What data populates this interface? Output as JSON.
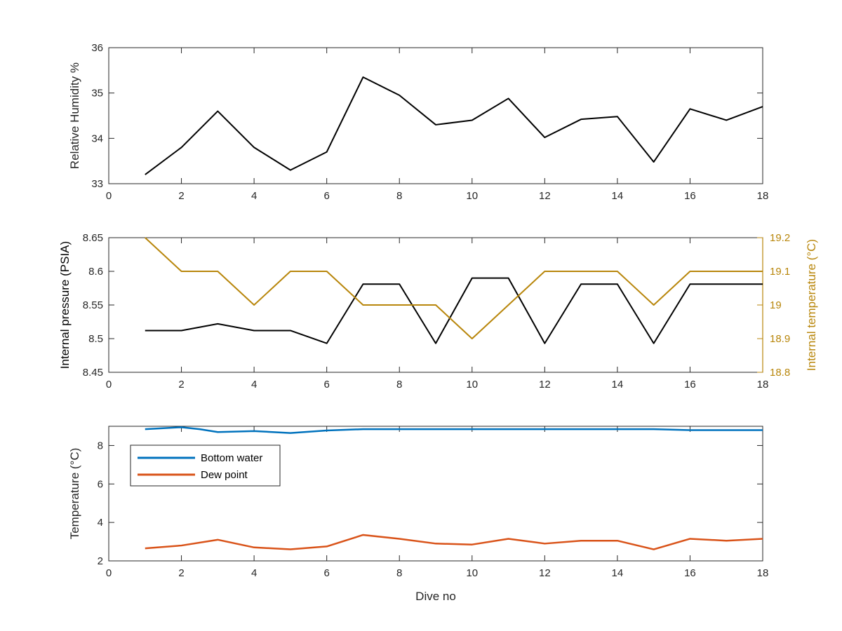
{
  "chart_data": [
    {
      "type": "line",
      "xlabel": "",
      "ylabel": "Relative Humidity %",
      "xlim": [
        0,
        18
      ],
      "ylim": [
        33,
        36
      ],
      "xticks": [
        0,
        2,
        4,
        6,
        8,
        10,
        12,
        14,
        16,
        18
      ],
      "yticks": [
        33,
        34,
        35,
        36
      ],
      "grid": false,
      "series": [
        {
          "color": "#000000",
          "x": [
            1,
            2,
            3,
            4,
            5,
            6,
            7,
            8,
            9,
            10,
            11,
            12,
            13,
            14,
            15,
            16,
            17,
            18
          ],
          "y": [
            33.2,
            33.8,
            34.6,
            33.8,
            33.3,
            33.7,
            35.35,
            34.95,
            34.3,
            34.4,
            34.88,
            34.02,
            34.42,
            34.48,
            33.48,
            34.65,
            34.4,
            34.7
          ]
        }
      ]
    },
    {
      "type": "line",
      "xlabel": "",
      "ylabel": "Internal pressure (PSIA)",
      "ylabel_right": "Internal temperature (°C)",
      "xlim": [
        0,
        18
      ],
      "ylim": [
        8.45,
        8.65
      ],
      "ylim_right": [
        18.8,
        19.2
      ],
      "xticks": [
        0,
        2,
        4,
        6,
        8,
        10,
        12,
        14,
        16,
        18
      ],
      "yticks": [
        "8.45",
        "8.5",
        "8.55",
        "8.6",
        "8.65"
      ],
      "yticks_right": [
        "18.8",
        "18.9",
        "19",
        "19.1",
        "19.2"
      ],
      "grid": false,
      "series": [
        {
          "axis": "left",
          "color": "#000000",
          "x": [
            1,
            2,
            3,
            4,
            5,
            6,
            7,
            8,
            9,
            10,
            11,
            12,
            13,
            14,
            15,
            16,
            17,
            18
          ],
          "y": [
            8.512,
            8.512,
            8.522,
            8.512,
            8.512,
            8.493,
            8.581,
            8.581,
            8.493,
            8.59,
            8.59,
            8.493,
            8.581,
            8.581,
            8.493,
            8.581,
            8.581,
            8.581
          ]
        },
        {
          "axis": "right",
          "color": "#B8860B",
          "x": [
            1,
            2,
            3,
            4,
            5,
            6,
            7,
            8,
            9,
            10,
            11,
            12,
            13,
            14,
            15,
            16,
            17,
            18
          ],
          "y": [
            19.2,
            19.1,
            19.1,
            19.0,
            19.1,
            19.1,
            19.0,
            19.0,
            19.0,
            18.9,
            19.0,
            19.1,
            19.1,
            19.1,
            19.0,
            19.1,
            19.1,
            19.1
          ]
        }
      ]
    },
    {
      "type": "line",
      "xlabel": "Dive no",
      "ylabel": "Temperature (°C)",
      "xlim": [
        0,
        18
      ],
      "ylim": [
        2,
        9
      ],
      "xticks": [
        0,
        2,
        4,
        6,
        8,
        10,
        12,
        14,
        16,
        18
      ],
      "yticks": [
        2,
        4,
        6,
        8
      ],
      "grid": false,
      "legend_position": "top-left",
      "series": [
        {
          "name": "Bottom water",
          "color": "#0072BD",
          "x": [
            1,
            1.5,
            2,
            2.5,
            3,
            4,
            5,
            6,
            7,
            8,
            9,
            10,
            11,
            12,
            13,
            14,
            15,
            16,
            17,
            18
          ],
          "y": [
            8.85,
            8.9,
            8.95,
            8.85,
            8.7,
            8.75,
            8.65,
            8.78,
            8.85,
            8.85,
            8.85,
            8.85,
            8.85,
            8.85,
            8.85,
            8.85,
            8.85,
            8.8,
            8.8,
            8.8
          ]
        },
        {
          "name": "Dew point",
          "color": "#D95319",
          "x": [
            1,
            2,
            3,
            4,
            5,
            6,
            7,
            8,
            9,
            10,
            11,
            12,
            13,
            14,
            15,
            16,
            17,
            18
          ],
          "y": [
            2.65,
            2.8,
            3.1,
            2.7,
            2.6,
            2.75,
            3.35,
            3.15,
            2.9,
            2.85,
            3.15,
            2.9,
            3.05,
            3.05,
            2.6,
            3.15,
            3.05,
            3.15
          ]
        }
      ]
    }
  ]
}
